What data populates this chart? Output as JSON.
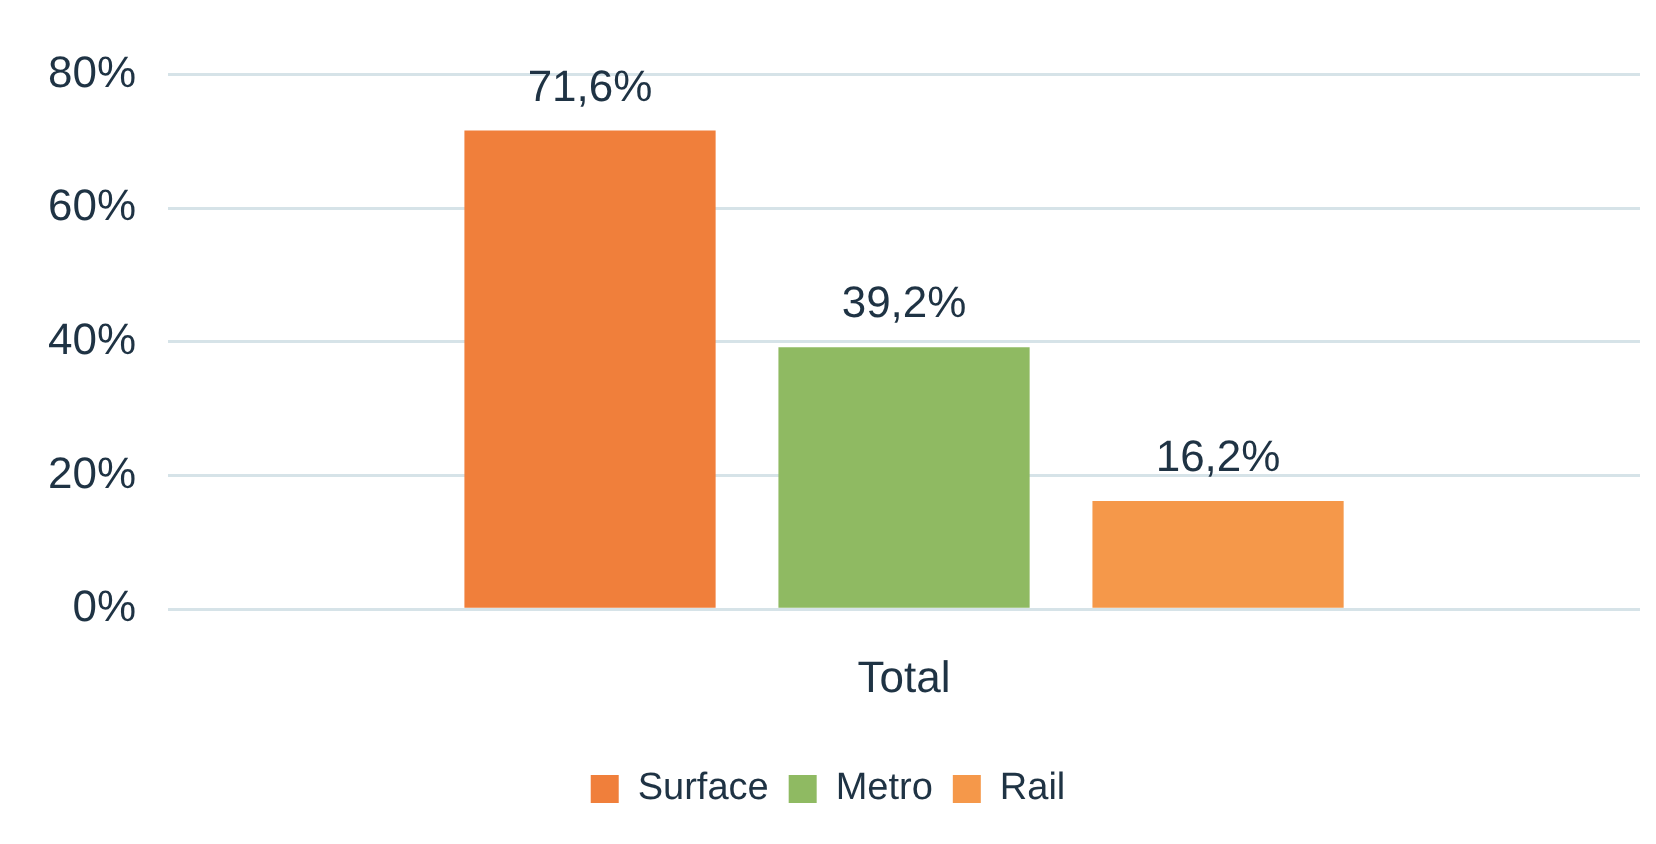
{
  "chart_data": {
    "type": "bar",
    "categories": [
      "Total"
    ],
    "series": [
      {
        "name": "Surface",
        "color": "#f07f3b",
        "values": [
          71.6
        ],
        "value_labels": [
          "71,6%"
        ]
      },
      {
        "name": "Metro",
        "color": "#8fba62",
        "values": [
          39.2
        ],
        "value_labels": [
          "39,2%"
        ]
      },
      {
        "name": "Rail",
        "color": "#f5984a",
        "values": [
          16.2
        ],
        "value_labels": [
          "16,2%"
        ]
      }
    ],
    "ylim": [
      0,
      80
    ],
    "yticks": [
      {
        "value": 0,
        "label": "0%"
      },
      {
        "value": 20,
        "label": "20%"
      },
      {
        "value": 40,
        "label": "40%"
      },
      {
        "value": 60,
        "label": "60%"
      },
      {
        "value": 80,
        "label": "80%"
      }
    ],
    "grid": "y",
    "legend": "bottom"
  }
}
